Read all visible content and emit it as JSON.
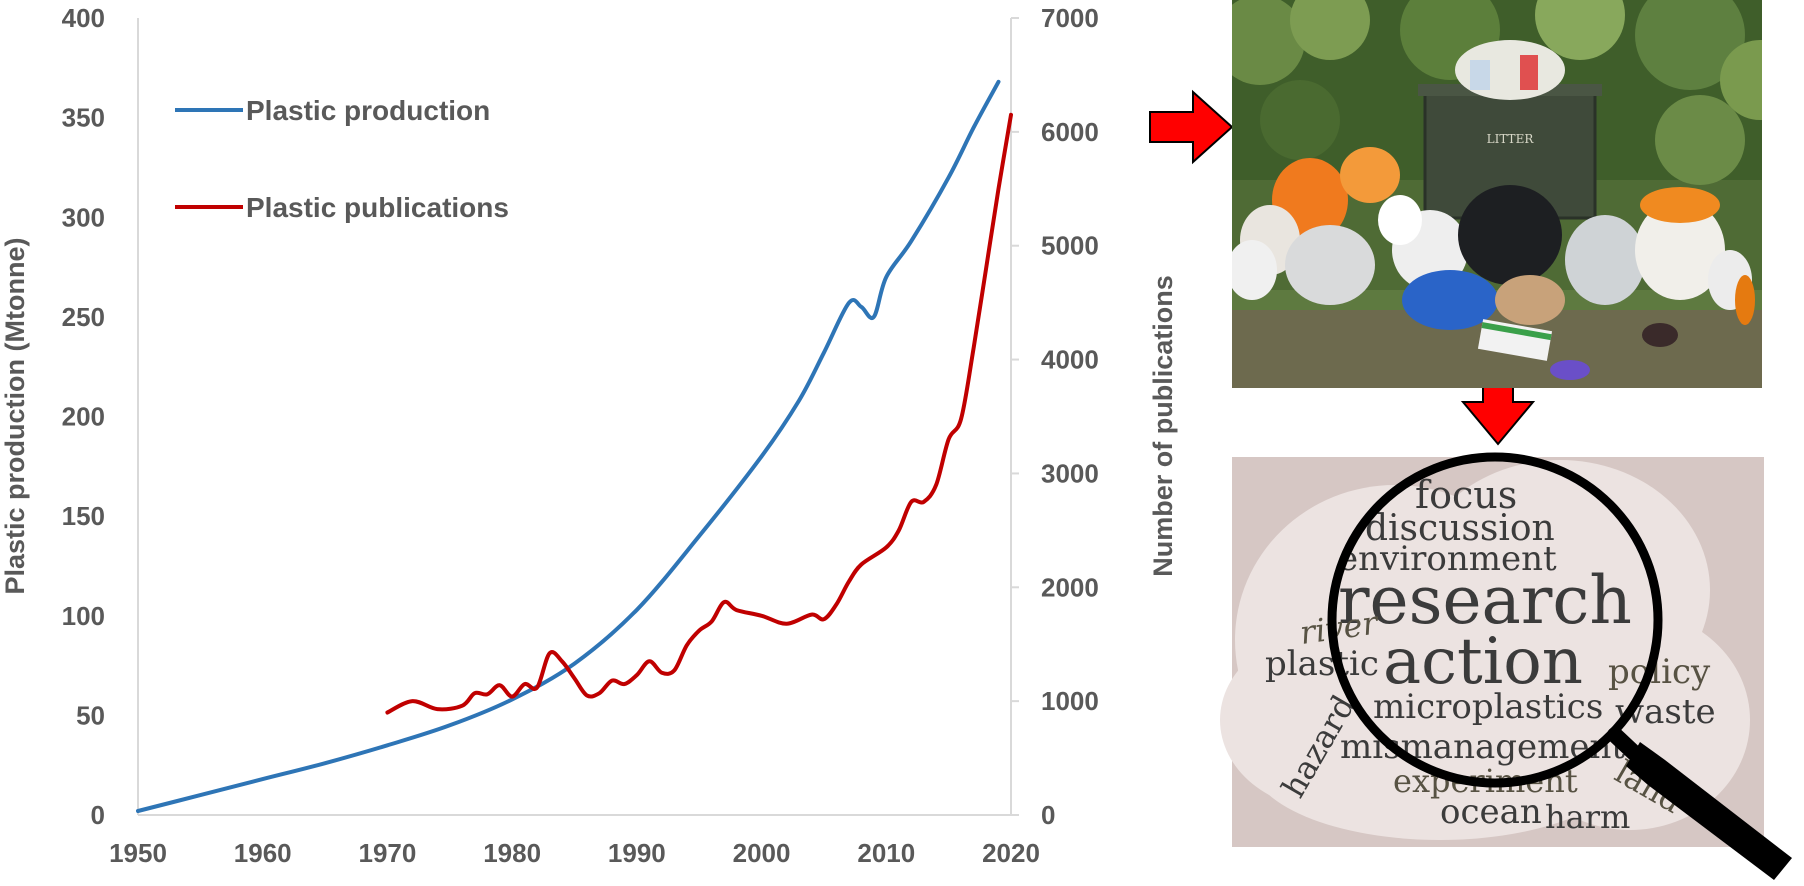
{
  "chart_data": {
    "type": "line",
    "xlabel": "",
    "ylabel": "Plastic production (Mtonne)",
    "y2label": "Number of publications",
    "xlim": [
      1950,
      2020
    ],
    "ylim": [
      0,
      400
    ],
    "y2lim": [
      0,
      7000
    ],
    "x_ticks": [
      "1950",
      "1960",
      "1970",
      "1980",
      "1990",
      "2000",
      "2010",
      "2020"
    ],
    "y_ticks": [
      "0",
      "50",
      "100",
      "150",
      "200",
      "250",
      "300",
      "350",
      "400"
    ],
    "y2_ticks": [
      "0",
      "1000",
      "2000",
      "3000",
      "4000",
      "5000",
      "6000",
      "7000"
    ],
    "legend_position": "top-left",
    "grid": false,
    "series": [
      {
        "name": "Plastic production",
        "axis": "left",
        "color": "#2e75b6",
        "x": [
          1950,
          1955,
          1960,
          1965,
          1970,
          1975,
          1980,
          1985,
          1990,
          1995,
          2000,
          2003,
          2005,
          2007,
          2008,
          2009,
          2010,
          2012,
          2015,
          2017,
          2019
        ],
        "y": [
          2,
          10,
          18,
          26,
          35,
          45,
          58,
          76,
          103,
          140,
          180,
          208,
          232,
          257,
          255,
          250,
          270,
          288,
          320,
          345,
          368
        ]
      },
      {
        "name": "Plastic publications",
        "axis": "right",
        "color": "#c00000",
        "x": [
          1970,
          1972,
          1974,
          1976,
          1977,
          1978,
          1979,
          1980,
          1981,
          1982,
          1983,
          1984,
          1985,
          1986,
          1987,
          1988,
          1989,
          1990,
          1991,
          1992,
          1993,
          1994,
          1995,
          1996,
          1997,
          1998,
          2000,
          2002,
          2004,
          2005,
          2006,
          2007,
          2008,
          2010,
          2011,
          2012,
          2013,
          2014,
          2015,
          2016,
          2017,
          2018,
          2019,
          2020
        ],
        "y": [
          900,
          1000,
          930,
          960,
          1070,
          1060,
          1140,
          1040,
          1150,
          1120,
          1420,
          1350,
          1200,
          1050,
          1070,
          1180,
          1150,
          1230,
          1350,
          1250,
          1270,
          1490,
          1620,
          1700,
          1870,
          1800,
          1750,
          1680,
          1760,
          1720,
          1850,
          2050,
          2200,
          2350,
          2500,
          2750,
          2750,
          2900,
          3300,
          3480,
          4100,
          4800,
          5500,
          6150
        ]
      }
    ]
  },
  "wordcloud": {
    "words": [
      "focus",
      "discussion",
      "environment",
      "research",
      "river",
      "action",
      "plastic",
      "policy",
      "microplastics",
      "waste",
      "mismanagement",
      "hazard",
      "experiment",
      "land",
      "ocean",
      "harm"
    ]
  },
  "photo": {
    "bin_label": "LITTER"
  }
}
